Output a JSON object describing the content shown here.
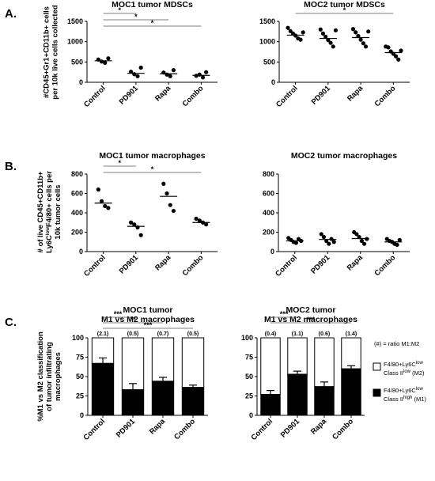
{
  "panels": {
    "A": {
      "label": "A.",
      "ylabel_lines": [
        "#CD45+Gr1+CD11b+ cells",
        "per 10k live cells collected"
      ]
    },
    "B": {
      "label": "B.",
      "ylabel_lines": [
        "# of live CD45+CD11b+",
        "Ly6C{low}F4/80+ cells per",
        "10k tumor cells"
      ]
    },
    "C": {
      "label": "C.",
      "ylabel_lines": [
        "%M1 vs M2 classification",
        "of tumor infiltrating",
        "macrophages"
      ]
    }
  },
  "legend": {
    "ratio_note": "(#) = ratio M1:M2",
    "m2": {
      "line1": "F4/80+Ly6C{low}",
      "line2": "Class II{low} (M2)",
      "color": "#ffffff"
    },
    "m1": {
      "line1": "F4/80+Ly6C{low}",
      "line2": "Class II{high} (M1)",
      "color": "#000000"
    }
  },
  "chart_data": [
    {
      "id": "moc1-mdsc",
      "type": "scatter",
      "title": "MOC1 tumor MDSCs",
      "categories": [
        "Control",
        "PD901",
        "Rapa",
        "Combo"
      ],
      "ylim": [
        0,
        1500
      ],
      "yticks": [
        0,
        500,
        1000,
        1500
      ],
      "points": [
        [
          560,
          510,
          480,
          590
        ],
        [
          260,
          200,
          150,
          360
        ],
        [
          240,
          190,
          150,
          300
        ],
        [
          160,
          190,
          120,
          250
        ]
      ],
      "means": [
        530,
        220,
        210,
        170
      ],
      "significance": [
        {
          "from": "Control",
          "to": "PD901",
          "label": "*"
        },
        {
          "from": "Control",
          "to": "Rapa",
          "label": "*"
        },
        {
          "from": "Control",
          "to": "Combo",
          "label": "*"
        }
      ]
    },
    {
      "id": "moc2-mdsc",
      "type": "scatter",
      "title": "MOC2 tumor MDSCs",
      "categories": [
        "Control",
        "PD901",
        "Rapa",
        "Combo"
      ],
      "ylim": [
        0,
        1500
      ],
      "yticks": [
        0,
        500,
        1000,
        1500
      ],
      "points": [
        [
          1340,
          1260,
          1200,
          1150,
          1080,
          1050,
          1230
        ],
        [
          1300,
          1200,
          1120,
          1040,
          970,
          880,
          1280
        ],
        [
          1310,
          1230,
          1140,
          1050,
          960,
          880,
          1250
        ],
        [
          880,
          860,
          760,
          700,
          640,
          560,
          780
        ]
      ],
      "means": [
        1160,
        1080,
        1100,
        730
      ],
      "significance": [
        {
          "from": "Control",
          "to": "Combo",
          "label": "*"
        }
      ]
    },
    {
      "id": "moc1-mac",
      "type": "scatter",
      "title": "MOC1 tumor macrophages",
      "categories": [
        "Control",
        "PD901",
        "Rapa",
        "Combo"
      ],
      "ylim": [
        0,
        800
      ],
      "yticks": [
        0,
        200,
        400,
        600,
        800
      ],
      "points": [
        [
          640,
          520,
          470,
          450
        ],
        [
          300,
          280,
          250,
          170
        ],
        [
          700,
          600,
          480,
          420
        ],
        [
          340,
          320,
          300,
          280
        ]
      ],
      "means": [
        500,
        260,
        570,
        300
      ],
      "significance": [
        {
          "from": "Control",
          "to": "PD901",
          "label": "*"
        },
        {
          "from": "Control",
          "to": "Combo",
          "label": "*"
        }
      ]
    },
    {
      "id": "moc2-mac",
      "type": "scatter",
      "title": "MOC2 tumor macrophages",
      "categories": [
        "Control",
        "PD901",
        "Rapa",
        "Combo"
      ],
      "ylim": [
        0,
        800
      ],
      "yticks": [
        0,
        200,
        400,
        600,
        800
      ],
      "points": [
        [
          140,
          120,
          100,
          90,
          130,
          110
        ],
        [
          180,
          150,
          110,
          80,
          130,
          100
        ],
        [
          200,
          180,
          150,
          110,
          80,
          130
        ],
        [
          130,
          110,
          100,
          80,
          70,
          120
        ]
      ],
      "means": [
        110,
        125,
        135,
        100
      ],
      "significance": []
    },
    {
      "id": "moc1-m1m2",
      "type": "bar",
      "title_lines": [
        "MOC1 tumor",
        "M1 vs M2 macrophages"
      ],
      "categories": [
        "Control",
        "PD901",
        "Rapa",
        "Combo"
      ],
      "ylim": [
        0,
        100
      ],
      "yticks": [
        0,
        25,
        50,
        75,
        100
      ],
      "series": [
        {
          "name": "F4/80+Ly6Clow Class IIhigh (M1)",
          "values": [
            67,
            33,
            44,
            36
          ],
          "errors": [
            7,
            8,
            5,
            3
          ]
        },
        {
          "name": "F4/80+Ly6Clow Class IIlow (M2)",
          "values": [
            33,
            67,
            56,
            64
          ]
        }
      ],
      "ratios": [
        "(2.1)",
        "(0.5)",
        "(0.7)",
        "(0.5)"
      ],
      "significance": [
        {
          "from": "Control",
          "to": "PD901",
          "label": "***"
        },
        {
          "from": "Control",
          "to": "Rapa",
          "label": "**"
        },
        {
          "from": "Control",
          "to": "Combo",
          "label": "***"
        }
      ]
    },
    {
      "id": "moc2-m1m2",
      "type": "bar",
      "title_lines": [
        "MOC2 tumor",
        "M1 vs M2 macrophages"
      ],
      "categories": [
        "Control",
        "PD901",
        "Rapa",
        "Combo"
      ],
      "ylim": [
        0,
        100
      ],
      "yticks": [
        0,
        25,
        50,
        75,
        100
      ],
      "series": [
        {
          "name": "F4/80+Ly6Clow Class IIhigh (M1)",
          "values": [
            27,
            53,
            37,
            60
          ],
          "errors": [
            5,
            4,
            6,
            4
          ]
        },
        {
          "name": "F4/80+Ly6Clow Class IIlow (M2)",
          "values": [
            73,
            47,
            63,
            40
          ]
        }
      ],
      "ratios": [
        "(0.4)",
        "(1.1)",
        "(0.6)",
        "(1.4)"
      ],
      "significance": [
        {
          "from": "Control",
          "to": "PD901",
          "label": "***"
        },
        {
          "from": "Control",
          "to": "Combo",
          "label": "***"
        }
      ]
    }
  ]
}
